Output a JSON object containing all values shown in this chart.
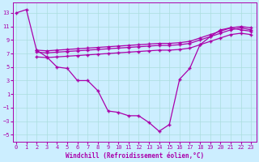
{
  "xlabel": "Windchill (Refroidissement éolien,°C)",
  "bg_color": "#cceeff",
  "grid_color": "#aadddd",
  "line_color": "#aa00aa",
  "x_ticks": [
    0,
    1,
    2,
    3,
    4,
    5,
    6,
    7,
    8,
    9,
    10,
    11,
    12,
    13,
    14,
    15,
    16,
    17,
    18,
    19,
    20,
    21,
    22,
    23
  ],
  "y_ticks": [
    -5,
    -3,
    -1,
    1,
    3,
    5,
    7,
    9,
    11,
    13
  ],
  "ylim": [
    -6.0,
    14.5
  ],
  "xlim": [
    -0.3,
    23.5
  ],
  "curve1_x": [
    0,
    1,
    2,
    3,
    4,
    5,
    6,
    7,
    8,
    9,
    10,
    11,
    12,
    13,
    14,
    15,
    16,
    17,
    18,
    19,
    20,
    21,
    22,
    23
  ],
  "curve1_y": [
    13.0,
    13.5,
    7.5,
    6.5,
    5.0,
    4.8,
    3.0,
    3.0,
    1.5,
    -1.5,
    -1.7,
    -2.2,
    -2.2,
    -3.2,
    -4.5,
    -3.5,
    3.2,
    4.8,
    8.3,
    9.5,
    10.5,
    10.8,
    10.5,
    10.3
  ],
  "curve2_x": [
    2,
    3,
    4,
    5,
    6,
    7,
    8,
    9,
    10,
    11,
    12,
    13,
    14,
    15,
    16,
    17,
    18,
    19,
    20,
    21,
    22,
    23
  ],
  "curve2_y": [
    7.2,
    7.1,
    7.2,
    7.3,
    7.4,
    7.5,
    7.6,
    7.7,
    7.8,
    7.9,
    8.0,
    8.1,
    8.2,
    8.2,
    8.3,
    8.5,
    9.0,
    9.5,
    10.0,
    10.5,
    10.8,
    10.5
  ],
  "curve3_x": [
    2,
    3,
    4,
    5,
    6,
    7,
    8,
    9,
    10,
    11,
    12,
    13,
    14,
    15,
    16,
    17,
    18,
    19,
    20,
    21,
    22,
    23
  ],
  "curve3_y": [
    7.5,
    7.4,
    7.5,
    7.6,
    7.7,
    7.8,
    7.9,
    8.0,
    8.1,
    8.2,
    8.3,
    8.4,
    8.5,
    8.5,
    8.6,
    8.8,
    9.3,
    9.8,
    10.3,
    10.8,
    11.0,
    10.8
  ],
  "curve4_x": [
    2,
    3,
    4,
    5,
    6,
    7,
    8,
    9,
    10,
    11,
    12,
    13,
    14,
    15,
    16,
    17,
    18,
    19,
    20,
    21,
    22,
    23
  ],
  "curve4_y": [
    6.5,
    6.4,
    6.5,
    6.6,
    6.7,
    6.8,
    6.9,
    7.0,
    7.1,
    7.2,
    7.3,
    7.4,
    7.5,
    7.5,
    7.6,
    7.8,
    8.3,
    8.8,
    9.3,
    9.8,
    10.0,
    9.8
  ]
}
